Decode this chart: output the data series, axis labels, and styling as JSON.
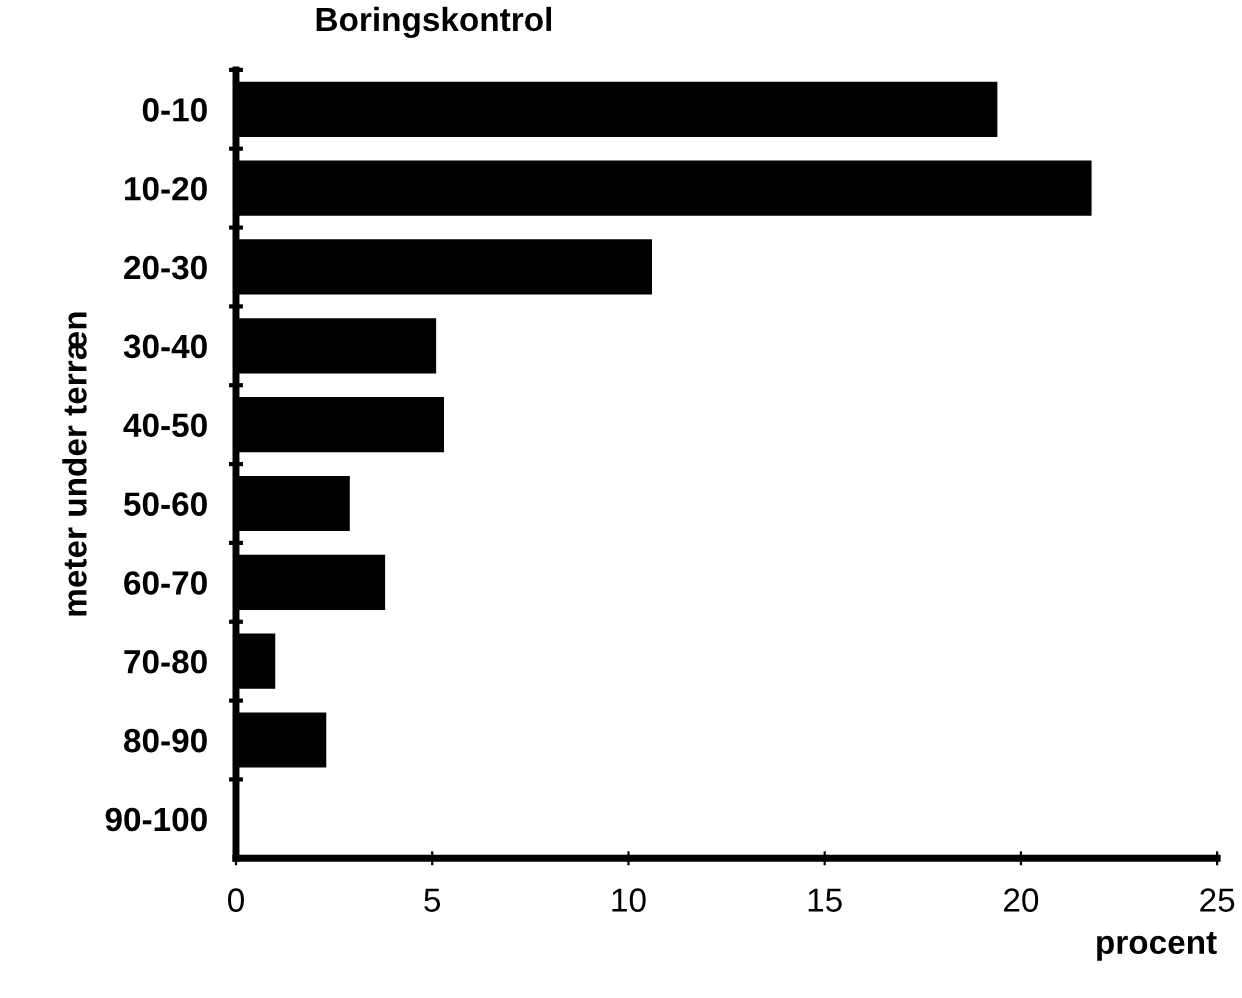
{
  "chart_data": {
    "type": "bar",
    "orientation": "horizontal",
    "title": "Boringskontrol",
    "xlabel": "procent",
    "ylabel": "meter under terræn",
    "categories": [
      "0-10",
      "10-20",
      "20-30",
      "30-40",
      "40-50",
      "50-60",
      "60-70",
      "70-80",
      "80-90",
      "90-100"
    ],
    "values": [
      19.4,
      21.8,
      10.6,
      5.1,
      5.3,
      2.9,
      3.8,
      1.0,
      2.3,
      0
    ],
    "color": "#000000",
    "xlim": [
      0,
      25
    ],
    "xticks": [
      0,
      5,
      10,
      15,
      20,
      25
    ],
    "grid": false
  }
}
